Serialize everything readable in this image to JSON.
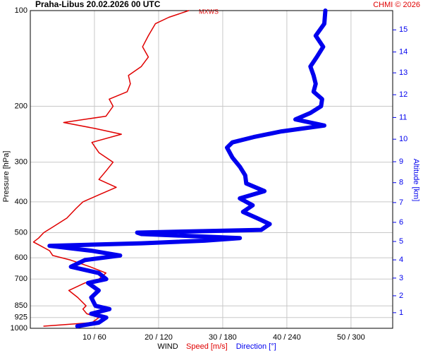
{
  "chart_data": {
    "type": "line",
    "title": "Praha-Libus    20.02.2026 00 UTC",
    "credit": "CHMI © 2026",
    "annotation": "MXWS",
    "ylabel": "Pressure [hPa]",
    "y2label": "Altitude [km]",
    "xlabel": "WIND",
    "ylog": true,
    "grid": true,
    "ylim": [
      1000,
      100
    ],
    "yticks": [
      100,
      200,
      300,
      400,
      500,
      600,
      700,
      850,
      925,
      1000
    ],
    "xlim": [
      0,
      56.5
    ],
    "x2lim": [
      0,
      339
    ],
    "xticks": [
      {
        "value": 10,
        "label": "10 / 60"
      },
      {
        "value": 20,
        "label": "20 / 120"
      },
      {
        "value": 30,
        "label": "30 / 180"
      },
      {
        "value": 40,
        "label": "40 / 240"
      },
      {
        "value": 50,
        "label": "50 / 300"
      }
    ],
    "y2ticks": [
      {
        "value": 1,
        "label": "1",
        "pressure": 893
      },
      {
        "value": 2,
        "label": "2",
        "pressure": 790
      },
      {
        "value": 3,
        "label": "3",
        "pressure": 695
      },
      {
        "value": 4,
        "label": "4",
        "pressure": 609
      },
      {
        "value": 5,
        "label": "5",
        "pressure": 533
      },
      {
        "value": 6,
        "label": "6",
        "pressure": 464
      },
      {
        "value": 7,
        "label": "7",
        "pressure": 402
      },
      {
        "value": 8,
        "label": "8",
        "pressure": 348
      },
      {
        "value": 9,
        "label": "9",
        "pressure": 299
      },
      {
        "value": 10,
        "label": "10",
        "pressure": 254
      },
      {
        "value": 11,
        "label": "11",
        "pressure": 217
      },
      {
        "value": 12,
        "label": "12",
        "pressure": 184
      },
      {
        "value": 13,
        "label": "13",
        "pressure": 157
      },
      {
        "value": 14,
        "label": "14",
        "pressure": 135
      },
      {
        "value": 15,
        "label": "15",
        "pressure": 115
      }
    ],
    "series": [
      {
        "name": "Speed [m/s]",
        "color": "#e00000",
        "axis": "x",
        "pressure": [
          985,
          960,
          925,
          900,
          870,
          850,
          800,
          760,
          720,
          700,
          670,
          640,
          610,
          590,
          570,
          550,
          535,
          520,
          500,
          480,
          450,
          420,
          400,
          380,
          360,
          340,
          320,
          300,
          280,
          260,
          245,
          235,
          225,
          215,
          200,
          190,
          180,
          170,
          160,
          150,
          140,
          130,
          120,
          110,
          105,
          100
        ],
        "values": [
          2.1,
          9.6,
          10.7,
          8.8,
          8.2,
          8.7,
          7.4,
          6.0,
          8.5,
          10.7,
          11.8,
          9.3,
          6.3,
          3.5,
          3.0,
          1.6,
          0.5,
          1.3,
          2.1,
          3.5,
          5.7,
          7.1,
          8.2,
          10.7,
          13.4,
          10.7,
          11.8,
          12.9,
          10.7,
          9.6,
          14.2,
          10.1,
          5.2,
          11.8,
          12.9,
          12.3,
          15.1,
          15.6,
          15.3,
          17.3,
          18.4,
          17.5,
          18.4,
          19.5,
          21.6,
          24.7
        ]
      },
      {
        "name": "Direction [°]",
        "color": "#0000ee",
        "axis": "x2",
        "pressure": [
          985,
          960,
          925,
          900,
          870,
          850,
          800,
          760,
          720,
          700,
          670,
          640,
          610,
          590,
          570,
          550,
          540,
          530,
          520,
          505,
          500,
          490,
          470,
          450,
          430,
          410,
          390,
          370,
          350,
          330,
          310,
          290,
          270,
          260,
          250,
          240,
          230,
          220,
          210,
          200,
          190,
          180,
          170,
          160,
          150,
          140,
          130,
          120,
          110,
          100
        ],
        "values": [
          44,
          64,
          71,
          57,
          74,
          61,
          57,
          64,
          54,
          71,
          64,
          38,
          51,
          84,
          57,
          18,
          104,
          163,
          196,
          104,
          100,
          216,
          224,
          212,
          199,
          208,
          196,
          219,
          202,
          201,
          196,
          189,
          184,
          189,
          209,
          235,
          275,
          248,
          262,
          272,
          273,
          265,
          267,
          265,
          262,
          268,
          274,
          267,
          275,
          276
        ]
      }
    ]
  }
}
